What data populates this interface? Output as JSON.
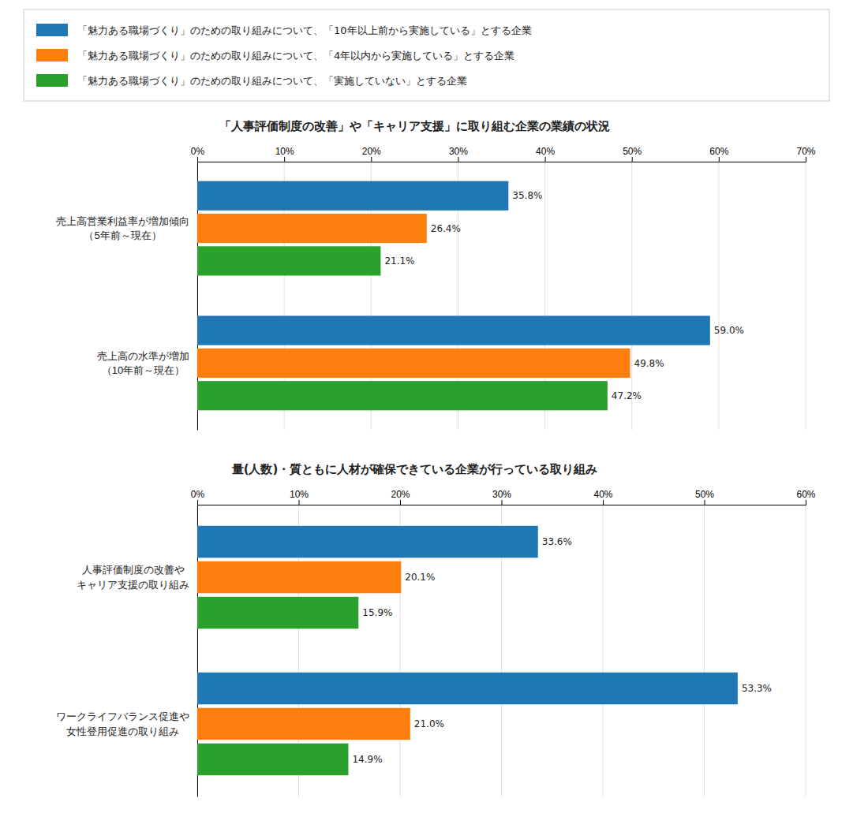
{
  "chart_data": [
    {
      "type": "bar",
      "orientation": "horizontal",
      "title": "「人事評価制度の改善」や「キャリア支援」に取り組む企業の業績の状況",
      "categories": [
        "売上高営業利益率が増加傾向\n（5年前～現在）",
        "売上高の水準が増加\n（10年前～現在）"
      ],
      "series": [
        {
          "name": "「魅力ある職場づくり」のための取り組みについて、「10年以上前から実施している」とする企業",
          "values": [
            35.8,
            59.0
          ],
          "value_labels": [
            "35.8%",
            "59.0%"
          ]
        },
        {
          "name": "「魅力ある職場づくり」のための取り組みについて、「4年以内から実施している」とする企業",
          "values": [
            26.4,
            49.8
          ],
          "value_labels": [
            "26.4%",
            "49.8%"
          ]
        },
        {
          "name": "「魅力ある職場づくり」のための取り組みについて、「実施していない」とする企業",
          "values": [
            21.1,
            47.2
          ],
          "value_labels": [
            "21.1%",
            "47.2%"
          ]
        }
      ],
      "xlim": [
        0,
        70
      ],
      "xticks": [
        {
          "value": 0,
          "label": "0%"
        },
        {
          "value": 10,
          "label": "10%"
        },
        {
          "value": 20,
          "label": "20%"
        },
        {
          "value": 30,
          "label": "30%"
        },
        {
          "value": 40,
          "label": "40%"
        },
        {
          "value": 50,
          "label": "50%"
        },
        {
          "value": 60,
          "label": "60%"
        },
        {
          "value": 70,
          "label": "70%"
        }
      ],
      "grid": true,
      "data_labels": true,
      "legend": "top"
    },
    {
      "type": "bar",
      "orientation": "horizontal",
      "title": "量(人数)・質ともに人材が確保できている企業が行っている取り組み",
      "categories": [
        "人事評価制度の改善や\nキャリア支援の取り組み",
        "ワークライフバランス促進や\n女性登用促進の取り組み"
      ],
      "series": [
        {
          "values": [
            33.6,
            53.3
          ],
          "value_labels": [
            "33.6%",
            "53.3%"
          ]
        },
        {
          "values": [
            20.1,
            21.0
          ],
          "value_labels": [
            "20.1%",
            "21.0%"
          ]
        },
        {
          "values": [
            15.9,
            14.9
          ],
          "value_labels": [
            "15.9%",
            "14.9%"
          ]
        }
      ],
      "xlim": [
        0,
        60
      ],
      "xticks": [
        {
          "value": 0,
          "label": "0%"
        },
        {
          "value": 10,
          "label": "10%"
        },
        {
          "value": 20,
          "label": "20%"
        },
        {
          "value": 30,
          "label": "30%"
        },
        {
          "value": 40,
          "label": "40%"
        },
        {
          "value": 50,
          "label": "50%"
        },
        {
          "value": 60,
          "label": "60%"
        }
      ],
      "grid": true,
      "data_labels": true
    }
  ]
}
